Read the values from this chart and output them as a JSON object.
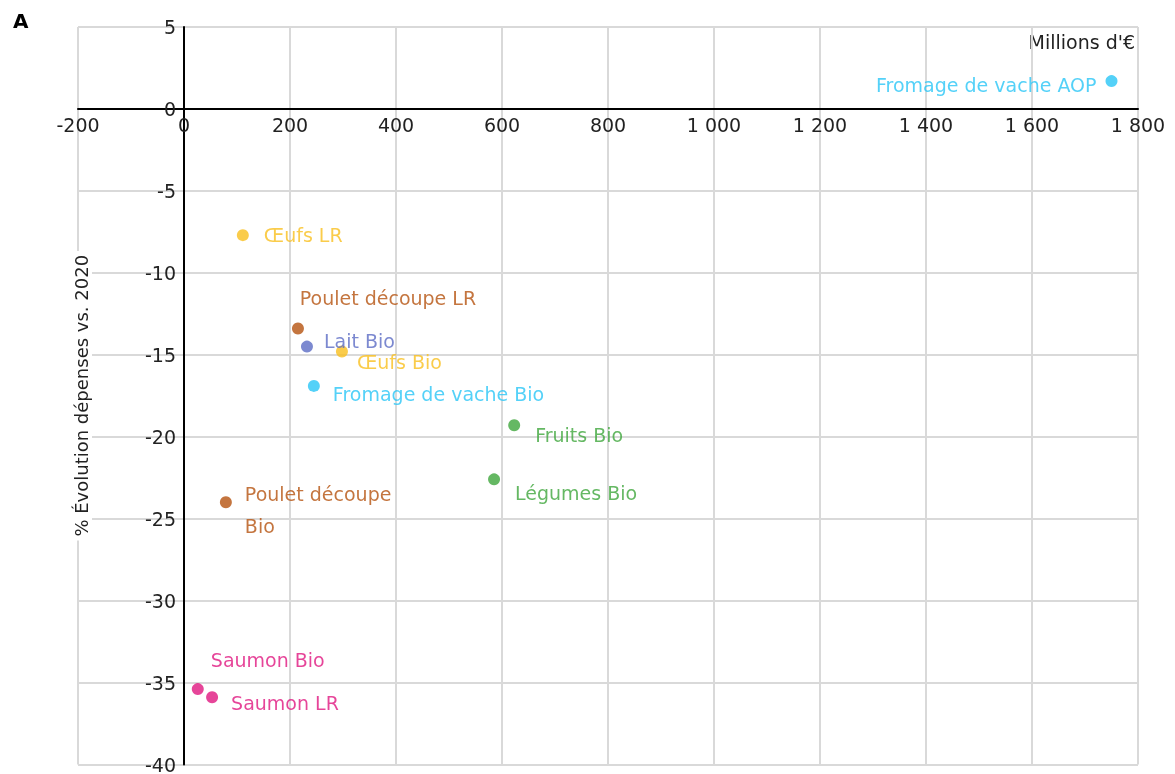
{
  "chart_data": {
    "type": "scatter",
    "title": "A",
    "xlabel": "Millions d'€",
    "ylabel": "% Évolution dépenses vs. 2020",
    "xlim": [
      -200,
      1800
    ],
    "xticks": [
      -200,
      0,
      200,
      400,
      600,
      800,
      {
        "value": 1000,
        "label": "1 000"
      },
      {
        "value": 1200,
        "label": "1 200"
      },
      {
        "value": 1400,
        "label": "1 400"
      },
      {
        "value": 1600,
        "label": "1 600"
      },
      {
        "value": 1800,
        "label": "1 800"
      }
    ],
    "ylim": [
      -40,
      5
    ],
    "yticks": [
      -40,
      -35,
      -30,
      -25,
      -20,
      -15,
      -10,
      -5,
      0,
      5
    ],
    "grid": true,
    "legend": false,
    "marker": "circle",
    "series": [
      {
        "name": "Fromage de vache AOP",
        "color": "#29c5f6",
        "x": [
          1750
        ],
        "values": [
          1.7
        ]
      },
      {
        "name": "Œufs LR",
        "color": "#f9bf1e",
        "x": [
          111
        ],
        "values": [
          -7.7
        ]
      },
      {
        "name": "Poulet découpe LR",
        "color": "#b5520f",
        "x": [
          215
        ],
        "values": [
          -13.4
        ]
      },
      {
        "name": "Lait Bio",
        "color": "#5b6cc4",
        "x": [
          232
        ],
        "values": [
          -14.5
        ]
      },
      {
        "name": "Œufs Bio",
        "color": "#f9bf1e",
        "x": [
          298
        ],
        "values": [
          -14.8
        ]
      },
      {
        "name": "Fromage de vache Bio",
        "color": "#29c5f6",
        "x": [
          245
        ],
        "values": [
          -16.9
        ]
      },
      {
        "name": "Fruits Bio",
        "color": "#3fa63c",
        "x": [
          623
        ],
        "values": [
          -19.3
        ]
      },
      {
        "name": "Légumes Bio",
        "color": "#3fa63c",
        "x": [
          585
        ],
        "values": [
          -22.6
        ]
      },
      {
        "name": "Poulet découpe Bio",
        "color": "#b5520f",
        "x": [
          79
        ],
        "values": [
          -24.0
        ]
      },
      {
        "name": "Saumon Bio",
        "color": "#e0177f",
        "x": [
          26
        ],
        "values": [
          -35.4
        ]
      },
      {
        "name": "Saumon LR",
        "color": "#e0177f",
        "x": [
          53
        ],
        "values": [
          -35.9
        ]
      }
    ]
  }
}
